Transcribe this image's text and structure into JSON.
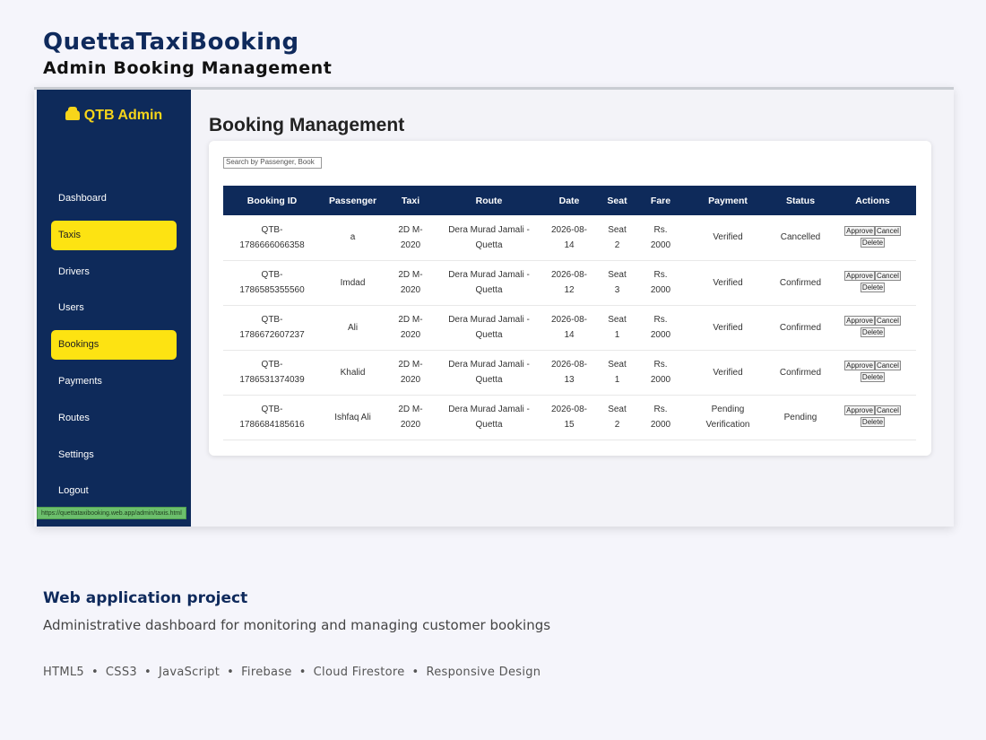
{
  "header": {
    "title": "QuettaTaxiBooking",
    "subtitle": "Admin Booking Management"
  },
  "sidebar": {
    "brand": "QTB Admin",
    "items": [
      {
        "label": "Dashboard",
        "active": false
      },
      {
        "label": "Taxis",
        "active": true
      },
      {
        "label": "Drivers",
        "active": false
      },
      {
        "label": "Users",
        "active": false
      },
      {
        "label": "Bookings",
        "active": true
      },
      {
        "label": "Payments",
        "active": false
      },
      {
        "label": "Routes",
        "active": false
      },
      {
        "label": "Settings",
        "active": false
      },
      {
        "label": "Logout",
        "active": false
      }
    ]
  },
  "status_url": "https://quettataxibooking.web.app/admin/taxis.html",
  "main": {
    "title": "Booking Management",
    "search_placeholder": "Search by Passenger, Book",
    "columns": [
      "Booking ID",
      "Passenger",
      "Taxi",
      "Route",
      "Date",
      "Seat",
      "Fare",
      "Payment",
      "Status",
      "Actions"
    ],
    "rows": [
      {
        "id": [
          "QTB-",
          "1786666066358"
        ],
        "passenger": "a",
        "taxi": [
          "2D M-",
          "2020"
        ],
        "route": [
          "Dera Murad Jamali -",
          "Quetta"
        ],
        "date": [
          "2026-08-",
          "14"
        ],
        "seat": [
          "Seat",
          "2"
        ],
        "fare": [
          "Rs.",
          "2000"
        ],
        "payment": [
          "Verified"
        ],
        "status": "Cancelled"
      },
      {
        "id": [
          "QTB-",
          "1786585355560"
        ],
        "passenger": "Imdad",
        "taxi": [
          "2D M-",
          "2020"
        ],
        "route": [
          "Dera Murad Jamali -",
          "Quetta"
        ],
        "date": [
          "2026-08-",
          "12"
        ],
        "seat": [
          "Seat",
          "3"
        ],
        "fare": [
          "Rs.",
          "2000"
        ],
        "payment": [
          "Verified"
        ],
        "status": "Confirmed"
      },
      {
        "id": [
          "QTB-",
          "1786672607237"
        ],
        "passenger": "Ali",
        "taxi": [
          "2D M-",
          "2020"
        ],
        "route": [
          "Dera Murad Jamali -",
          "Quetta"
        ],
        "date": [
          "2026-08-",
          "14"
        ],
        "seat": [
          "Seat",
          "1"
        ],
        "fare": [
          "Rs.",
          "2000"
        ],
        "payment": [
          "Verified"
        ],
        "status": "Confirmed"
      },
      {
        "id": [
          "QTB-",
          "1786531374039"
        ],
        "passenger": "Khalid",
        "taxi": [
          "2D M-",
          "2020"
        ],
        "route": [
          "Dera Murad Jamali -",
          "Quetta"
        ],
        "date": [
          "2026-08-",
          "13"
        ],
        "seat": [
          "Seat",
          "1"
        ],
        "fare": [
          "Rs.",
          "2000"
        ],
        "payment": [
          "Verified"
        ],
        "status": "Confirmed"
      },
      {
        "id": [
          "QTB-",
          "1786684185616"
        ],
        "passenger": "Ishfaq Ali",
        "taxi": [
          "2D M-",
          "2020"
        ],
        "route": [
          "Dera Murad Jamali -",
          "Quetta"
        ],
        "date": [
          "2026-08-",
          "15"
        ],
        "seat": [
          "Seat",
          "2"
        ],
        "fare": [
          "Rs.",
          "2000"
        ],
        "payment": [
          "Pending",
          "Verification"
        ],
        "status": "Pending"
      }
    ],
    "actions": {
      "approve": "Approve",
      "cancel": "Cancel",
      "delete": "Delete"
    }
  },
  "footer": {
    "title": "Web application project",
    "description": "Administrative dashboard for monitoring and managing customer bookings",
    "tags": [
      "HTML5",
      "CSS3",
      "JavaScript",
      "Firebase",
      "Cloud Firestore",
      "Responsive Design"
    ]
  },
  "colors": {
    "navy": "#0e2a5a",
    "accent_yellow": "#fde312",
    "status_green": "#6cbf6c"
  },
  "icons": {
    "brand": "taxi-car-icon"
  }
}
